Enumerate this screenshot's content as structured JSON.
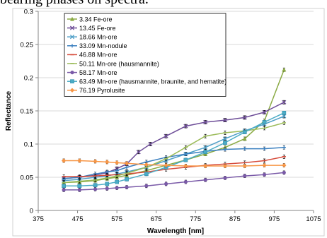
{
  "caption": "bearing phases on spectra.",
  "chart_data": {
    "type": "line",
    "xlabel": "Wavelength [nm]",
    "ylabel": "Reflectance",
    "xlim": [
      375,
      1075
    ],
    "ylim": [
      0,
      0.3
    ],
    "xticks": [
      375,
      475,
      575,
      675,
      775,
      875,
      975,
      1075
    ],
    "xtick_labels": [
      "375",
      "475",
      "575",
      "675",
      "775",
      "875",
      "975",
      "1075"
    ],
    "yticks": [
      0,
      0.05,
      0.1,
      0.15,
      0.2,
      0.25,
      0.3
    ],
    "ytick_labels": [
      "0",
      "0.05",
      "0.1",
      "0.15",
      "0.2",
      "0.25",
      "0.3"
    ],
    "grid": "horizontal",
    "legend_position": "top-left",
    "error_bars": true,
    "series": [
      {
        "name": "3.34 Fe-ore",
        "color": "#8aaa44",
        "marker": "triangle",
        "x": [
          440,
          480,
          520,
          550,
          575,
          600,
          650,
          700,
          750,
          800,
          850,
          900,
          950,
          1000
        ],
        "y": [
          0.042,
          0.043,
          0.045,
          0.048,
          0.05,
          0.053,
          0.06,
          0.068,
          0.076,
          0.085,
          0.095,
          0.108,
          0.135,
          0.212
        ]
      },
      {
        "name": "13.45 Fe-ore",
        "color": "#6e4e98",
        "marker": "x",
        "x": [
          440,
          480,
          520,
          550,
          575,
          600,
          630,
          660,
          700,
          750,
          800,
          850,
          900,
          950,
          1000
        ],
        "y": [
          0.048,
          0.05,
          0.053,
          0.057,
          0.063,
          0.07,
          0.088,
          0.1,
          0.112,
          0.127,
          0.133,
          0.136,
          0.14,
          0.148,
          0.163
        ]
      },
      {
        "name": "18.66 Mn-ore",
        "color": "#4e9fc7",
        "marker": "x",
        "x": [
          440,
          480,
          520,
          550,
          575,
          600,
          650,
          700,
          750,
          800,
          850,
          900,
          950,
          1000
        ],
        "y": [
          0.045,
          0.047,
          0.05,
          0.052,
          0.055,
          0.058,
          0.065,
          0.075,
          0.085,
          0.095,
          0.108,
          0.12,
          0.13,
          0.142
        ]
      },
      {
        "name": "33.09 Mn-nodule",
        "color": "#3a7fbf",
        "marker": "plus",
        "x": [
          440,
          480,
          520,
          550,
          575,
          600,
          650,
          700,
          750,
          800,
          850,
          900,
          950,
          1000
        ],
        "y": [
          0.048,
          0.05,
          0.055,
          0.058,
          0.06,
          0.065,
          0.073,
          0.08,
          0.085,
          0.089,
          0.092,
          0.093,
          0.093,
          0.095
        ]
      },
      {
        "name": "46.88 Mn-ore",
        "color": "#d64b3b",
        "marker": "dash",
        "x": [
          440,
          480,
          520,
          550,
          575,
          600,
          650,
          700,
          750,
          800,
          850,
          900,
          950,
          1000
        ],
        "y": [
          0.051,
          0.051,
          0.052,
          0.053,
          0.054,
          0.055,
          0.058,
          0.062,
          0.065,
          0.068,
          0.07,
          0.072,
          0.075,
          0.081
        ]
      },
      {
        "name": "50.11 Mn-ore (hausmannite)",
        "color": "#9bbb59",
        "marker": "dash",
        "x": [
          440,
          480,
          520,
          550,
          575,
          600,
          650,
          700,
          750,
          800,
          850,
          900,
          950,
          1000
        ],
        "y": [
          0.042,
          0.044,
          0.046,
          0.049,
          0.052,
          0.056,
          0.065,
          0.078,
          0.095,
          0.112,
          0.117,
          0.12,
          0.124,
          0.132
        ]
      },
      {
        "name": "58.17 Mn-ore",
        "color": "#7a5aa8",
        "marker": "circle",
        "x": [
          440,
          480,
          520,
          550,
          575,
          600,
          650,
          700,
          750,
          800,
          850,
          900,
          950,
          1000
        ],
        "y": [
          0.031,
          0.031,
          0.032,
          0.033,
          0.034,
          0.035,
          0.037,
          0.04,
          0.043,
          0.046,
          0.049,
          0.052,
          0.054,
          0.057
        ]
      },
      {
        "name": "63.49 Mn-ore (hausmannite, braunite, and hematite)",
        "color": "#4bacc6",
        "marker": "square",
        "x": [
          440,
          480,
          520,
          550,
          575,
          600,
          650,
          700,
          750,
          800,
          850,
          900,
          950,
          1000
        ],
        "y": [
          0.037,
          0.037,
          0.038,
          0.04,
          0.043,
          0.047,
          0.055,
          0.065,
          0.076,
          0.088,
          0.102,
          0.118,
          0.133,
          0.147
        ]
      },
      {
        "name": "76.19 Pyrolusite",
        "color": "#f79646",
        "marker": "diamond",
        "x": [
          440,
          480,
          520,
          550,
          575,
          600,
          650,
          700,
          750,
          800,
          850,
          900,
          950,
          1000
        ],
        "y": [
          0.075,
          0.075,
          0.074,
          0.073,
          0.072,
          0.071,
          0.069,
          0.068,
          0.067,
          0.067,
          0.067,
          0.067,
          0.068,
          0.068
        ]
      }
    ]
  }
}
